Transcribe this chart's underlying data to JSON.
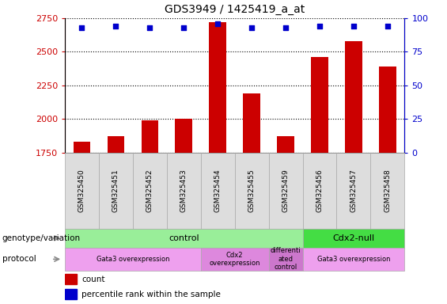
{
  "title": "GDS3949 / 1425419_a_at",
  "samples": [
    "GSM325450",
    "GSM325451",
    "GSM325452",
    "GSM325453",
    "GSM325454",
    "GSM325455",
    "GSM325459",
    "GSM325456",
    "GSM325457",
    "GSM325458"
  ],
  "count_values": [
    1830,
    1870,
    1990,
    2000,
    2720,
    2190,
    1870,
    2460,
    2580,
    2390
  ],
  "percentile_values": [
    93,
    94,
    93,
    93,
    96,
    93,
    93,
    94,
    94,
    94
  ],
  "ylim_left": [
    1750,
    2750
  ],
  "ylim_right": [
    0,
    100
  ],
  "bar_color": "#cc0000",
  "dot_color": "#0000cc",
  "genotype_row": {
    "label": "genotype/variation",
    "groups": [
      {
        "text": "control",
        "start": 0,
        "end": 6,
        "color": "#99ee99"
      },
      {
        "text": "Cdx2-null",
        "start": 7,
        "end": 9,
        "color": "#44dd44"
      }
    ]
  },
  "protocol_row": {
    "label": "protocol",
    "groups": [
      {
        "text": "Gata3 overexpression",
        "start": 0,
        "end": 3,
        "color": "#eea0ee"
      },
      {
        "text": "Cdx2\noverexpression",
        "start": 4,
        "end": 5,
        "color": "#dd88dd"
      },
      {
        "text": "differenti\nated\ncontrol",
        "start": 6,
        "end": 6,
        "color": "#cc77cc"
      },
      {
        "text": "Gata3 overexpression",
        "start": 7,
        "end": 9,
        "color": "#eea0ee"
      }
    ]
  },
  "tick_left": [
    1750,
    2000,
    2250,
    2500,
    2750
  ],
  "tick_right": [
    0,
    25,
    50,
    75,
    100
  ],
  "left_tick_color": "#cc0000",
  "right_tick_color": "#0000cc"
}
